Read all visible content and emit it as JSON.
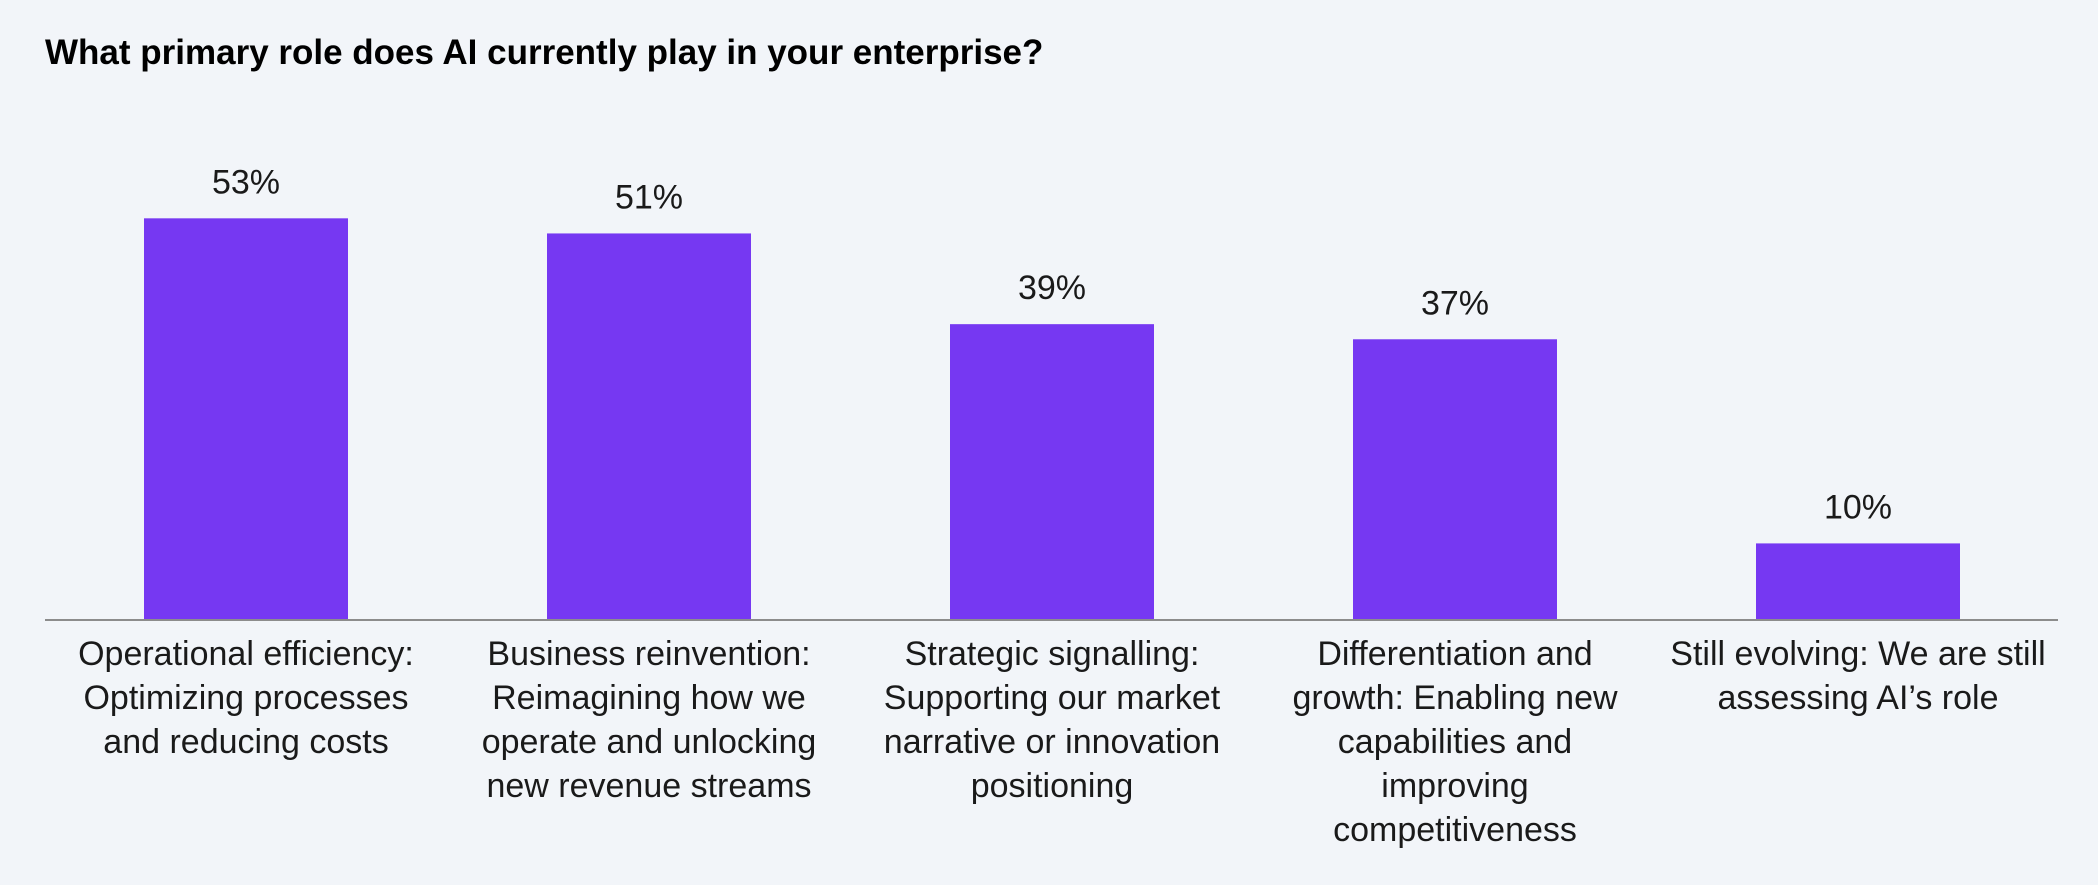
{
  "chart_data": {
    "type": "bar",
    "title": "What primary role does AI currently play in your enterprise?",
    "categories": [
      [
        "Operational efficiency:",
        "Optimizing processes",
        "and reducing costs"
      ],
      [
        "Business reinvention:",
        "Reimagining how we",
        "operate and unlocking",
        "new revenue streams"
      ],
      [
        "Strategic signalling:",
        "Supporting our market",
        "narrative or innovation",
        "positioning"
      ],
      [
        "Differentiation and",
        "growth: Enabling new",
        "capabilities and",
        "improving",
        "competitiveness"
      ],
      [
        "Still evolving: We are still",
        "assessing AI’s role"
      ]
    ],
    "values": [
      53,
      51,
      39,
      37,
      10
    ],
    "value_labels": [
      "53%",
      "51%",
      "39%",
      "37%",
      "10%"
    ],
    "ylim": [
      0,
      70
    ],
    "grid": false,
    "bar_color": "#7638f2",
    "axis_color": "#8c8c8c"
  }
}
